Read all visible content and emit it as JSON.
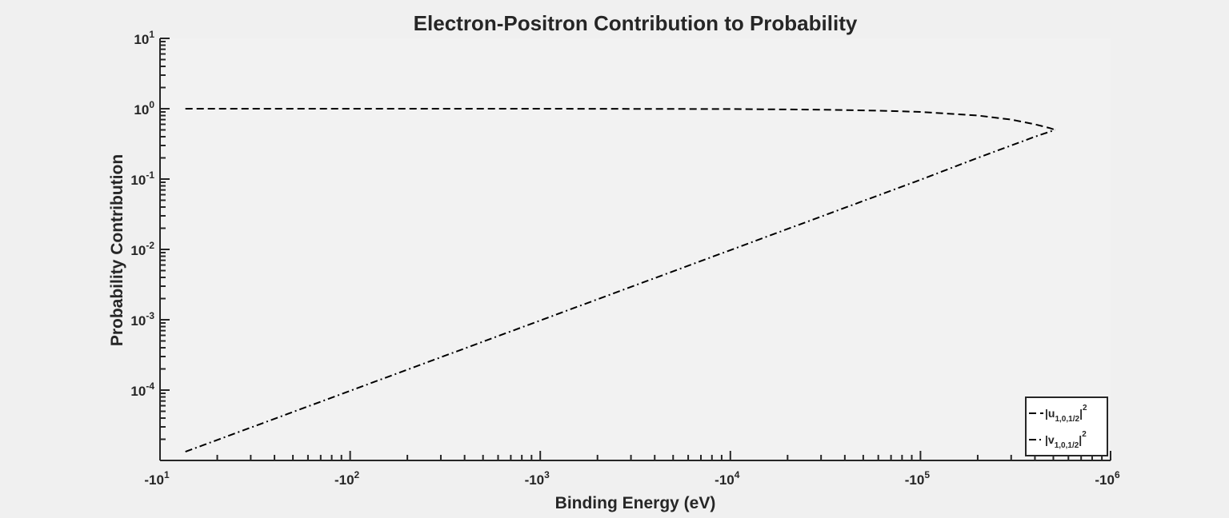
{
  "chart_data": {
    "type": "line",
    "title": "Electron-Positron Contribution to Probability",
    "xlabel": "Binding Energy (eV)",
    "ylabel": "Probability Contribution",
    "x_scale": "log (negative values)",
    "y_scale": "log",
    "xlim": [
      -10,
      -1000000
    ],
    "ylim": [
      1e-05,
      10
    ],
    "x_ticks": [
      {
        "base": "-10",
        "exp": "1"
      },
      {
        "base": "-10",
        "exp": "2"
      },
      {
        "base": "-10",
        "exp": "3"
      },
      {
        "base": "-10",
        "exp": "4"
      },
      {
        "base": "-10",
        "exp": "5"
      },
      {
        "base": "-10",
        "exp": "6"
      }
    ],
    "y_ticks": [
      {
        "base": "10",
        "exp": "-4"
      },
      {
        "base": "10",
        "exp": "-3"
      },
      {
        "base": "10",
        "exp": "-2"
      },
      {
        "base": "10",
        "exp": "-1"
      },
      {
        "base": "10",
        "exp": "0"
      },
      {
        "base": "10",
        "exp": "1"
      }
    ],
    "grid": false,
    "legend_position": "bottom-right",
    "series": [
      {
        "name": "|u1,0,1/2|^2",
        "legend": {
          "pre": "|u",
          "sub": "1,0,1/2",
          "post": "|",
          "sup": "2"
        },
        "line_style": "dashed",
        "color": "#000000",
        "x": [
          -13.6,
          -100,
          -1000,
          -10000,
          -30000,
          -60000,
          -100000,
          -200000,
          -300000,
          -400000,
          -480000,
          -511000
        ],
        "y": [
          1.0,
          1.0,
          1.0,
          0.99,
          0.97,
          0.94,
          0.9,
          0.8,
          0.7,
          0.6,
          0.53,
          0.5
        ]
      },
      {
        "name": "|v1,0,1/2|^2",
        "legend": {
          "pre": "|v",
          "sub": "1,0,1/2",
          "post": "|",
          "sup": "2"
        },
        "line_style": "dash-dot",
        "color": "#000000",
        "x": [
          -13.6,
          -100,
          -1000,
          -10000,
          -100000,
          -200000,
          -300000,
          -400000,
          -511000
        ],
        "y": [
          1.33e-05,
          9.78e-05,
          0.000978,
          0.00978,
          0.0978,
          0.2,
          0.3,
          0.4,
          0.5
        ]
      }
    ]
  }
}
